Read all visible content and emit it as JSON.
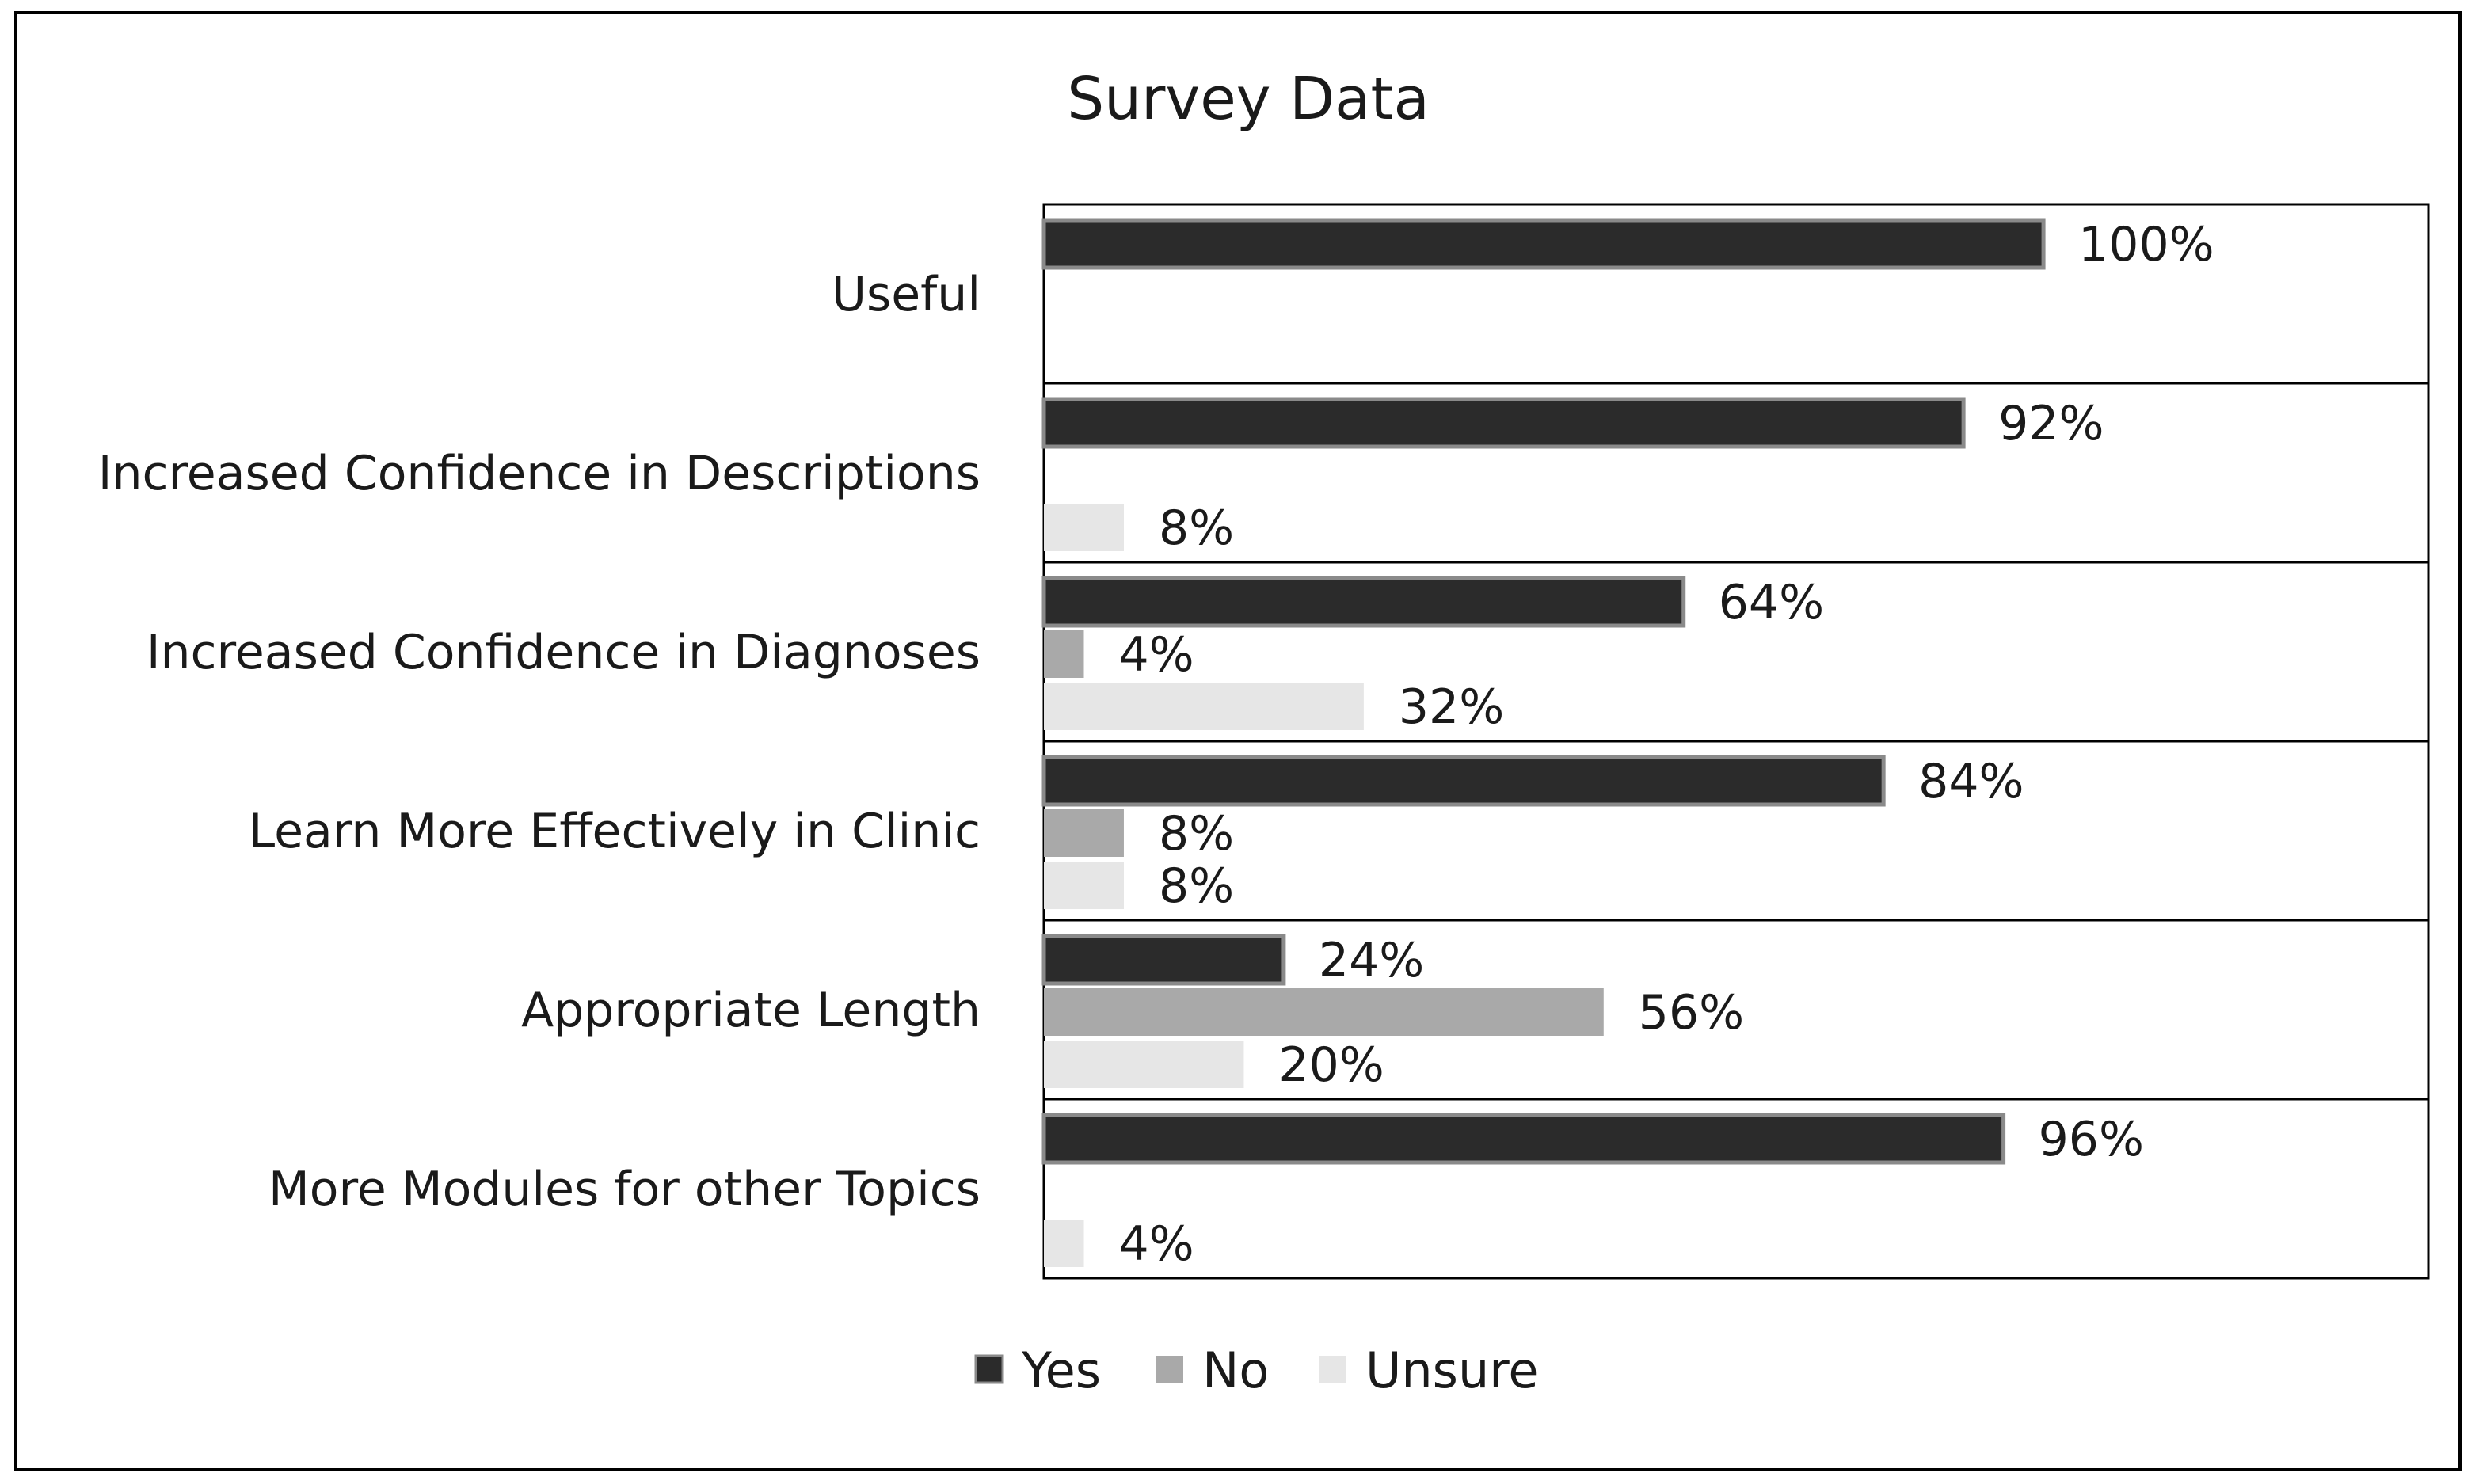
{
  "chart_data": {
    "type": "bar",
    "orientation": "horizontal",
    "title": "Survey Data",
    "xlabel": "",
    "ylabel": "",
    "xlim": [
      0,
      100
    ],
    "categories": [
      "Useful",
      "Increased Confidence in Descriptions",
      "Increased Confidence in Diagnoses",
      "Learn More Effectively in Clinic",
      "Appropriate Length",
      "More Modules for other Topics"
    ],
    "series": [
      {
        "name": "Yes",
        "color": "#2b2b2b",
        "values": [
          100,
          92,
          64,
          84,
          24,
          96
        ],
        "labels": [
          "100%",
          "92%",
          "64%",
          "84%",
          "24%",
          "96%"
        ]
      },
      {
        "name": "No",
        "color": "#a9a9a9",
        "values": [
          0,
          0,
          4,
          8,
          56,
          0
        ],
        "labels": [
          "",
          "",
          "4%",
          "8%",
          "56%",
          ""
        ]
      },
      {
        "name": "Unsure",
        "color": "#e6e6e6",
        "values": [
          0,
          8,
          32,
          8,
          20,
          4
        ],
        "labels": [
          "",
          "8%",
          "32%",
          "8%",
          "20%",
          "4%"
        ]
      }
    ],
    "grid": false,
    "legend_position": "bottom"
  }
}
